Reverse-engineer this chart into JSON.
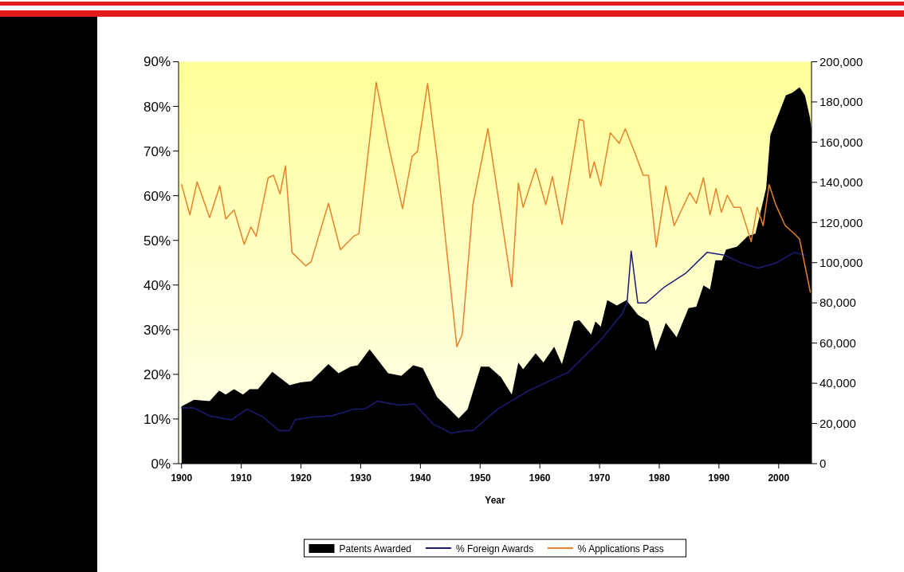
{
  "chart_data": {
    "type": "line",
    "xlabel": "Year",
    "xlim": [
      1899.5,
      2005.5
    ],
    "xticks": [
      1900,
      1910,
      1920,
      1930,
      1940,
      1950,
      1960,
      1970,
      1980,
      1990,
      2000
    ],
    "ylim": [
      0,
      90
    ],
    "yticks": [
      {
        "value": 0,
        "label": "0%"
      },
      {
        "value": 10,
        "label": "10%"
      },
      {
        "value": 20,
        "label": "20%"
      },
      {
        "value": 30,
        "label": "30%"
      },
      {
        "value": 40,
        "label": "40%"
      },
      {
        "value": 50,
        "label": "50%"
      },
      {
        "value": 60,
        "label": "60%"
      },
      {
        "value": 70,
        "label": "70%"
      },
      {
        "value": 80,
        "label": "80%"
      },
      {
        "value": 90,
        "label": "90%"
      }
    ],
    "y2lim": [
      0,
      200000
    ],
    "y2ticks": [
      0,
      {
        "value": 20000,
        "label": "20,000"
      },
      {
        "value": 40000,
        "label": "40,000"
      },
      {
        "value": 60000,
        "label": "60,000"
      },
      {
        "value": 80000,
        "label": "80,000"
      },
      {
        "value": 100000,
        "label": "100,000"
      },
      {
        "value": 120000,
        "label": "120,000"
      },
      {
        "value": 140000,
        "label": "140,000"
      },
      {
        "value": 160000,
        "label": "160,000"
      },
      {
        "value": 180000,
        "label": "180,000"
      },
      {
        "value": 200000,
        "label": "200,000"
      }
    ],
    "legend": "bottom",
    "series": [
      {
        "name": "Patents Awarded",
        "type": "area",
        "axis": "y2",
        "color": "#000000",
        "x": [
          1900,
          1902.1,
          1904.7,
          1906.3,
          1907.4,
          1908.8,
          1910.3,
          1911.4,
          1912.8,
          1915.2,
          1918.1,
          1919.9,
          1921.7,
          1924.6,
          1926.3,
          1928.3,
          1929.5,
          1931.5,
          1934.6,
          1936.8,
          1938.8,
          1940.4,
          1942.8,
          1944.4,
          1946.4,
          1947.9,
          1950.1,
          1951.5,
          1953.5,
          1955.3,
          1956.4,
          1957.2,
          1959.3,
          1960.6,
          1962.4,
          1963.7,
          1965.7,
          1966.6,
          1968.6,
          1969.3,
          1970.2,
          1971.3,
          1972.9,
          1974.5,
          1976.4,
          1978.2,
          1979.4,
          1981.1,
          1982.9,
          1984.9,
          1986.2,
          1987.4,
          1988.5,
          1989.4,
          1990.5,
          1991.2,
          1993,
          1994.8,
          1996.1,
          1997.9,
          1998.6,
          2001.2,
          2002.3,
          2003.5,
          2004.4,
          2005.2,
          2005.5
        ],
        "values": [
          28500,
          31800,
          31100,
          36400,
          34400,
          37100,
          34400,
          37100,
          37100,
          45700,
          39000,
          40400,
          41000,
          49600,
          45000,
          48300,
          49000,
          56900,
          45000,
          43700,
          49000,
          47600,
          33100,
          28500,
          22500,
          27100,
          48300,
          48300,
          43000,
          34400,
          50300,
          47000,
          54900,
          50300,
          58200,
          49600,
          70800,
          71500,
          64200,
          70800,
          68200,
          81400,
          78700,
          81400,
          74100,
          70800,
          56200,
          70100,
          62900,
          77400,
          78100,
          88700,
          86700,
          101200,
          101200,
          106500,
          107900,
          113200,
          114500,
          137000,
          163400,
          183300,
          184600,
          187300,
          183300,
          172700,
          166100
        ]
      },
      {
        "name": "% Foreign Awards",
        "color": "#1c1c78",
        "x": [
          1900,
          1902,
          1904.7,
          1908.3,
          1911,
          1913.7,
          1916.3,
          1918.1,
          1919,
          1921.7,
          1925.2,
          1928.8,
          1930.6,
          1932.8,
          1936.4,
          1939,
          1942.1,
          1945.2,
          1947.5,
          1948.8,
          1952.9,
          1958.2,
          1964.8,
          1970.2,
          1973.8,
          1974.6,
          1975.3,
          1976.4,
          1977.8,
          1980.9,
          1984.4,
          1988,
          1990.9,
          1993.8,
          1996.5,
          1999.5,
          2002.6,
          2004.4
        ],
        "values": [
          12.5,
          12.5,
          10.7,
          9.8,
          12.2,
          10.4,
          7.4,
          7.4,
          9.8,
          10.4,
          10.7,
          12.2,
          12.2,
          14,
          13.1,
          13.4,
          8.9,
          6.8,
          7.4,
          7.4,
          12.2,
          16.4,
          20.5,
          27.7,
          33.6,
          36,
          47.6,
          36,
          36,
          39.6,
          42.6,
          47.3,
          46.7,
          44.9,
          43.8,
          44.9,
          47.3,
          46.7
        ]
      },
      {
        "name": "% Applications Pass",
        "color": "#e8822a",
        "x": [
          1900,
          1901.4,
          1902.6,
          1904.7,
          1906.4,
          1907.4,
          1908.8,
          1910.5,
          1911.6,
          1912.5,
          1914.5,
          1915.4,
          1916.5,
          1917.4,
          1918.5,
          1920.8,
          1921.7,
          1924.6,
          1926.6,
          1928.8,
          1929.7,
          1932.6,
          1934.6,
          1937,
          1938.6,
          1939.5,
          1941.2,
          1942.8,
          1946.1,
          1947,
          1948.8,
          1951.3,
          1955.3,
          1956.4,
          1957.2,
          1959.3,
          1961,
          1962.1,
          1963.7,
          1966.6,
          1967.3,
          1968.4,
          1969.1,
          1970.2,
          1971.8,
          1973.3,
          1974.3,
          1976,
          1977.3,
          1978.2,
          1979.5,
          1981.1,
          1982.5,
          1985.1,
          1986.2,
          1987.4,
          1988.5,
          1989.5,
          1990.4,
          1991.4,
          1992.5,
          1993.6,
          1995.4,
          1996.4,
          1997.4,
          1998.4,
          1999.5,
          2001.1,
          2002.6,
          2003.5,
          2005.3
        ],
        "values": [
          62.5,
          55.7,
          63.1,
          55.1,
          62.2,
          54.8,
          56.8,
          49.1,
          53,
          50.9,
          64,
          64.6,
          60.4,
          66.7,
          47.3,
          44.3,
          45.2,
          58.3,
          47.9,
          50.9,
          51.5,
          85.4,
          71.7,
          57.1,
          68.8,
          69.9,
          85.1,
          68.2,
          26.2,
          28.9,
          58,
          75,
          39.6,
          62.8,
          57.4,
          66.1,
          58,
          64.3,
          53.6,
          77.1,
          76.8,
          64,
          67.6,
          62.2,
          74.1,
          71.7,
          75,
          69.3,
          64.6,
          64.6,
          48.5,
          62.2,
          53.3,
          60.7,
          58.3,
          64,
          55.7,
          61.6,
          56.3,
          60.1,
          57.4,
          57.4,
          49.7,
          57.4,
          53.3,
          62.5,
          58,
          53.3,
          51.5,
          50.3,
          38.4
        ]
      }
    ]
  }
}
